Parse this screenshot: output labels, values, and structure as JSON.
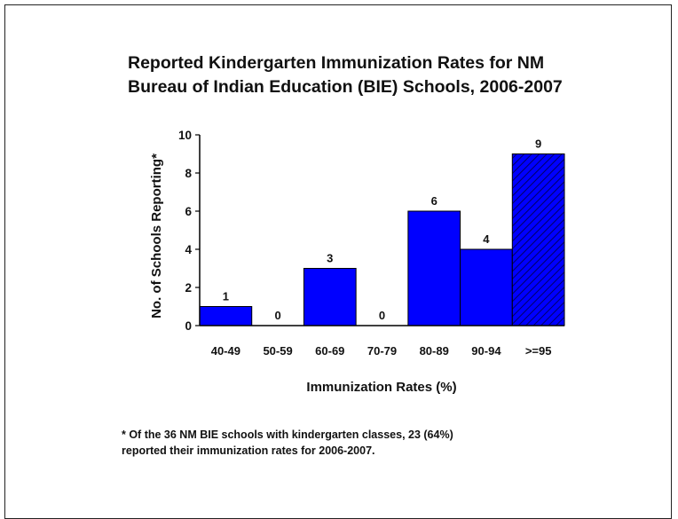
{
  "chart_data": {
    "type": "bar",
    "title": "Reported Kindergarten Immunization Rates for NM Bureau of Indian Education (BIE) Schools, 2006-2007",
    "title_lines": [
      "Reported Kindergarten Immunization Rates for NM",
      "Bureau of Indian Education (BIE) Schools, 2006-2007"
    ],
    "xlabel": "Immunization Rates (%)",
    "ylabel": "No. of Schools Reporting*",
    "categories": [
      "40-49",
      "50-59",
      "60-69",
      "70-79",
      "80-89",
      "90-94",
      ">=95"
    ],
    "values": [
      1,
      0,
      3,
      0,
      6,
      4,
      9
    ],
    "data_labels": [
      "1",
      "0",
      "3",
      "0",
      "6",
      "4",
      "9"
    ],
    "ylim": [
      0,
      10
    ],
    "yticks": [
      0,
      2,
      4,
      6,
      8,
      10
    ],
    "grid": false,
    "legend": "none",
    "bar_color": "#0000ff",
    "hatched_categories": [
      ">=95"
    ],
    "footnote_lines": [
      "* Of the 36 NM BIE schools with kindergarten classes, 23 (64%)",
      "reported their immunization rates for 2006-2007."
    ]
  }
}
